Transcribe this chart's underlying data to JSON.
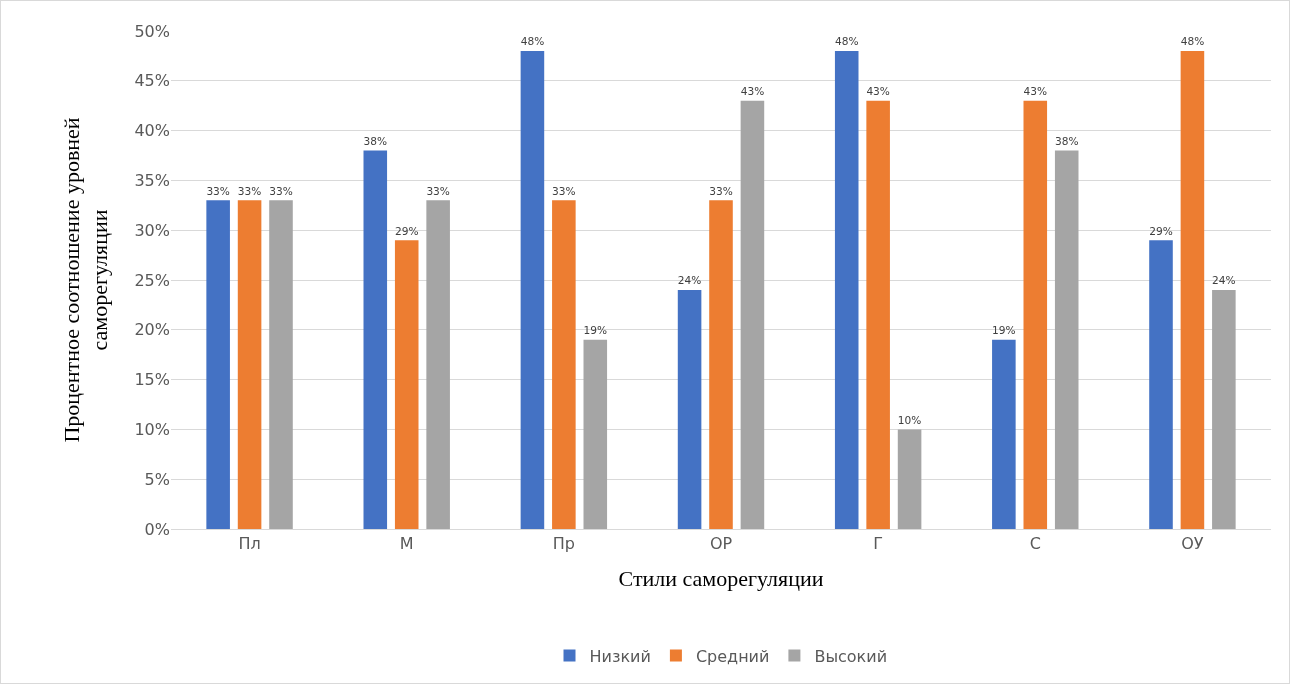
{
  "chart_data": {
    "type": "bar",
    "xlabel": "Стили саморегуляции",
    "ylabel": "Процентное соотношение уровней саморегуляции",
    "categories": [
      "Пл",
      "М",
      "Пр",
      "ОР",
      "Г",
      "С",
      "ОУ"
    ],
    "series": [
      {
        "name": "Низкий",
        "color": "#4472c4",
        "values": [
          33,
          38,
          48,
          24,
          48,
          19,
          29
        ],
        "value_labels": [
          "33%",
          "38%",
          "48%",
          "24%",
          "48%",
          "19%",
          "29%"
        ]
      },
      {
        "name": "Средний",
        "color": "#ed7d31",
        "values": [
          33,
          29,
          33,
          33,
          43,
          43,
          48
        ],
        "value_labels": [
          "33%",
          "29%",
          "33%",
          "33%",
          "43%",
          "43%",
          "48%"
        ]
      },
      {
        "name": "Высокий",
        "color": "#a5a5a5",
        "values": [
          33,
          33,
          19,
          43,
          10,
          38,
          24
        ],
        "value_labels": [
          "33%",
          "33%",
          "19%",
          "43%",
          "10%",
          "38%",
          "24%"
        ]
      }
    ],
    "ylim": [
      0,
      50
    ],
    "yticks": [
      {
        "value": 0,
        "label": "0%"
      },
      {
        "value": 5,
        "label": "5%"
      },
      {
        "value": 10,
        "label": "10%"
      },
      {
        "value": 15,
        "label": "15%"
      },
      {
        "value": 20,
        "label": "20%"
      },
      {
        "value": 25,
        "label": "25%"
      },
      {
        "value": 30,
        "label": "30%"
      },
      {
        "value": 35,
        "label": "35%"
      },
      {
        "value": 40,
        "label": "40%"
      },
      {
        "value": 45,
        "label": "45%"
      },
      {
        "value": 50,
        "label": "50%"
      }
    ],
    "grid": "y",
    "legend": "bottom"
  }
}
